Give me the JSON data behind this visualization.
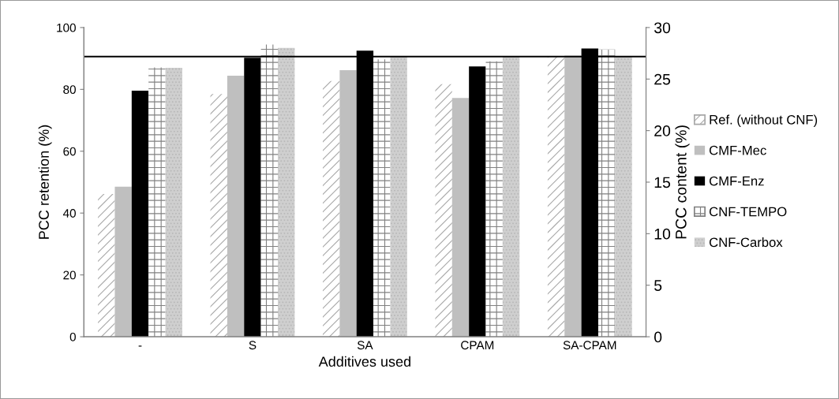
{
  "chart_data": {
    "type": "bar",
    "xlabel": "Additives used",
    "ylabel": "PCC retention (%)",
    "y2label": "PCC content (%)",
    "categories": [
      "-",
      "S",
      "SA",
      "CPAM",
      "SA-CPAM"
    ],
    "series": [
      {
        "name": "Ref. (without CNF)",
        "color": "#ffffff",
        "values": [
          46.2,
          78.5,
          82.7,
          81.7,
          90.5
        ]
      },
      {
        "name": "CMF-Mec",
        "color": "#bfbfbf",
        "values": [
          48.5,
          84.4,
          86.2,
          77.2,
          90.9
        ]
      },
      {
        "name": "CMF-Enz",
        "color": "#000000",
        "values": [
          79.6,
          90.2,
          92.5,
          87.4,
          93.2
        ]
      },
      {
        "name": "CNF-TEMPO",
        "color": "#ffffff",
        "values": [
          87.1,
          94.5,
          89.7,
          89.1,
          92.9
        ]
      },
      {
        "name": "CNF-Carbox",
        "color": "#cfcfcf",
        "values": [
          87.0,
          93.4,
          90.7,
          90.7,
          90.7
        ]
      }
    ],
    "ylim": [
      0,
      100
    ],
    "yticks": [
      0,
      20,
      40,
      60,
      80,
      100
    ],
    "y2lim": [
      0,
      30
    ],
    "y2ticks": [
      0,
      5,
      10,
      15,
      20,
      25,
      30
    ],
    "ref_lines": [
      {
        "axis": "y",
        "value": 90.6,
        "color": "#000000"
      }
    ],
    "grid": false,
    "legend": "right"
  }
}
